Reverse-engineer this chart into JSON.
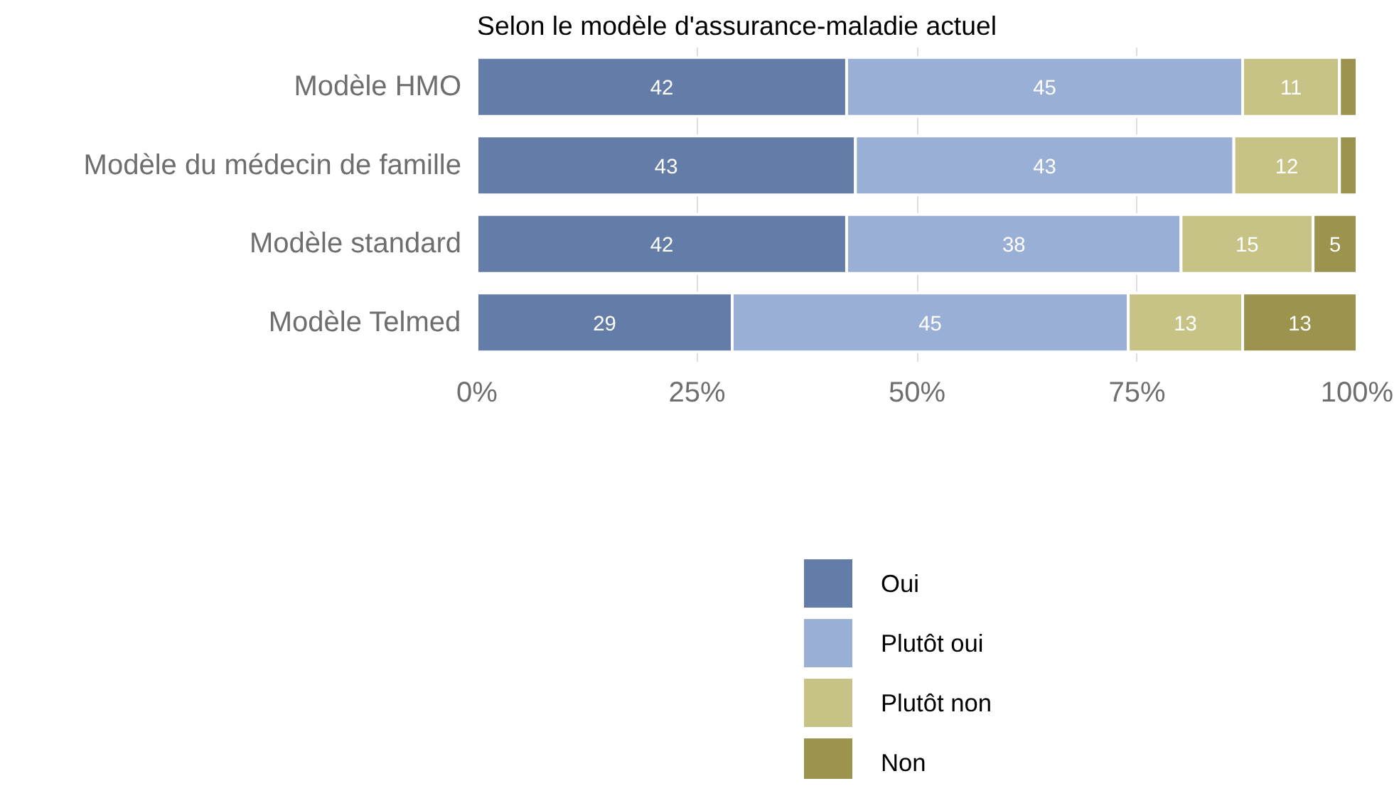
{
  "chart_data": {
    "type": "bar",
    "orientation": "horizontal",
    "stacked": true,
    "title": "Selon le modèle d'assurance-maladie actuel",
    "categories": [
      "Modèle HMO",
      "Modèle du médecin de famille",
      "Modèle standard",
      "Modèle Telmed"
    ],
    "series": [
      {
        "name": "Oui",
        "color": "#647ca8",
        "values": [
          42,
          43,
          42,
          29
        ],
        "value_labels": [
          "42",
          "43",
          "42",
          "29"
        ]
      },
      {
        "name": "Plutôt oui",
        "color": "#9aafd6",
        "values": [
          45,
          43,
          38,
          45
        ],
        "value_labels": [
          "45",
          "43",
          "38",
          "45"
        ]
      },
      {
        "name": "Plutôt non",
        "color": "#c7c286",
        "values": [
          11,
          12,
          15,
          13
        ],
        "value_labels": [
          "11",
          "12",
          "15",
          "13"
        ]
      },
      {
        "name": "Non",
        "color": "#9c944e",
        "values": [
          2,
          2,
          5,
          13
        ],
        "value_labels": [
          null,
          null,
          "5",
          "13"
        ]
      }
    ],
    "xlim": [
      0,
      100
    ],
    "xticks": [
      {
        "value": 0,
        "label": "0%"
      },
      {
        "value": 25,
        "label": "25%"
      },
      {
        "value": 50,
        "label": "50%"
      },
      {
        "value": 75,
        "label": "75%"
      },
      {
        "value": 100,
        "label": "100%"
      }
    ],
    "grid": "x",
    "legend": "bottom"
  }
}
